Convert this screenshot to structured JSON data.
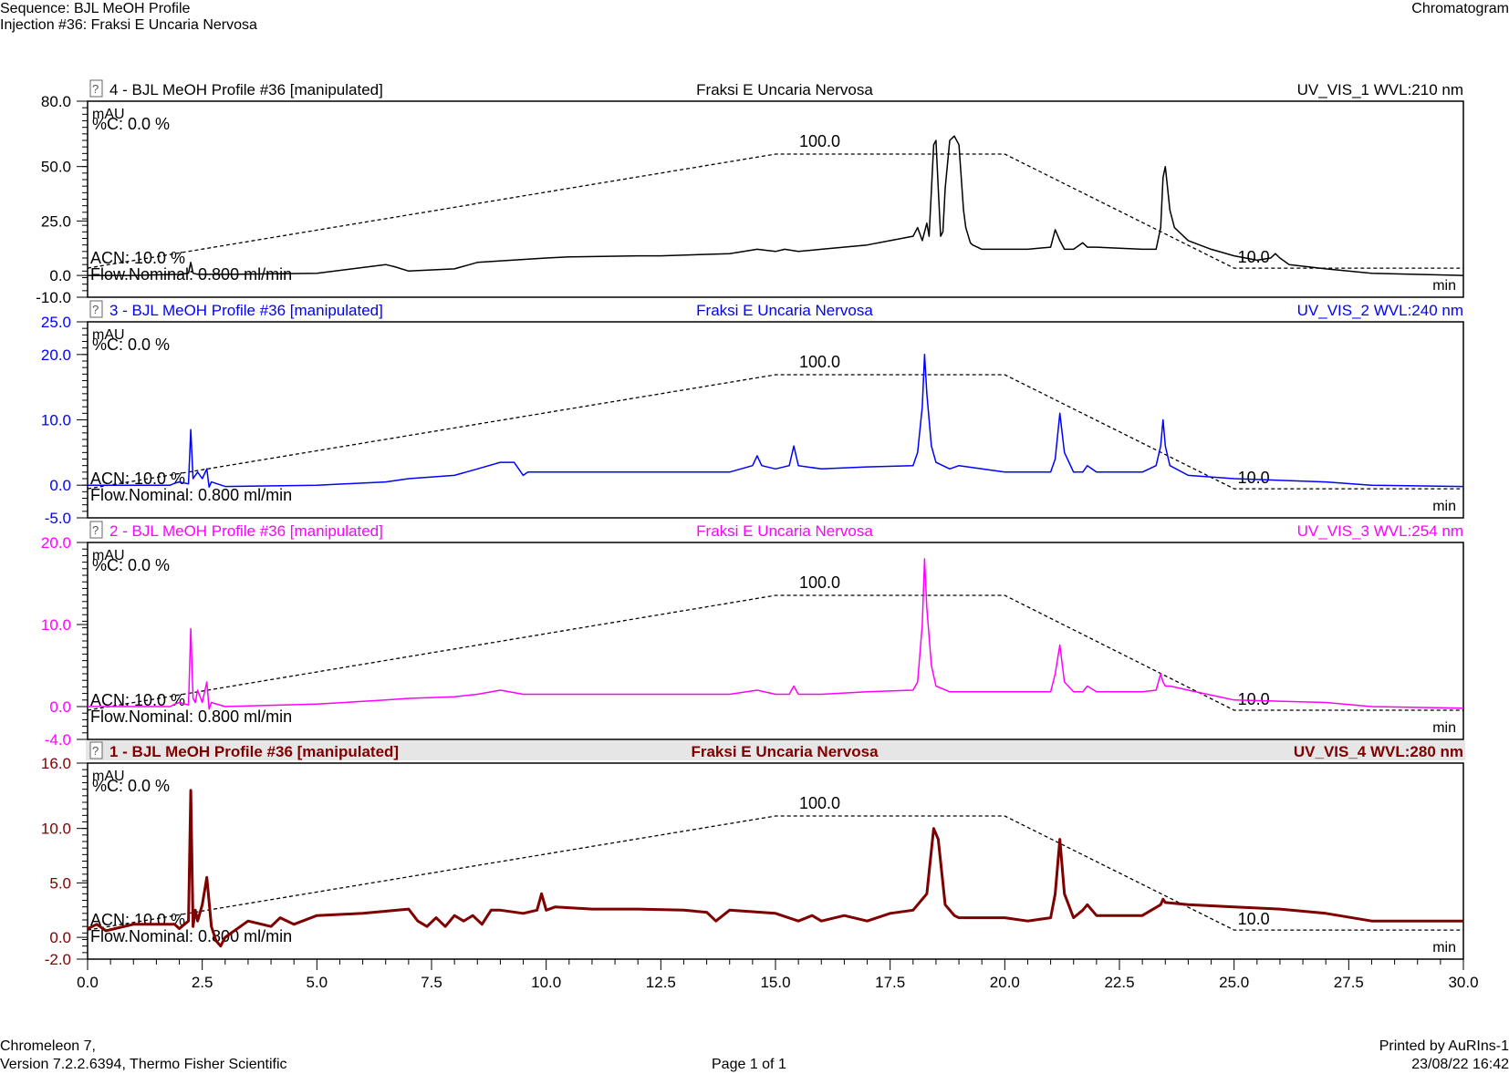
{
  "header": {
    "sequence": "Sequence: BJL MeOH Profile",
    "injection": "Injection #36: Fraksi E Uncaria Nervosa",
    "report_type": "Chromatogram"
  },
  "footer": {
    "software": "Chromeleon 7,",
    "version": "Version 7.2.2.6394, Thermo Fisher Scientific",
    "page": "Page 1 of 1",
    "printed_by": "Printed by AuRIns-1",
    "printed_at": "23/08/22 16:42"
  },
  "chart_data": {
    "type": "line",
    "x_ticks": [
      "0.0",
      "2.5",
      "5.0",
      "7.5",
      "10.0",
      "12.5",
      "15.0",
      "17.5",
      "20.0",
      "22.5",
      "25.0",
      "27.5",
      "30.0"
    ],
    "xlim": [
      0,
      30
    ],
    "grid": false,
    "gradient": {
      "x": [
        0,
        15,
        20,
        25,
        30
      ],
      "y_percent": [
        10,
        100,
        100,
        10,
        10
      ],
      "label_start": "ACN: 10.0 %",
      "label_peak": "100.0",
      "label_end": "10.0",
      "label_pct_c": "%C: 0.0 %",
      "label_flow": "Flow.Nominal: 0.800 ml/min"
    },
    "panels": [
      {
        "name": "4 - BJL MeOH Profile #36 [manipulated]",
        "sample": "Fraksi E Uncaria Nervosa",
        "channel": "UV_VIS_1 WVL:210 nm",
        "color": "#000000",
        "bold": false,
        "y_unit": "mAU",
        "x_unit": "min",
        "ylim": [
          -10,
          80
        ],
        "y_ticks": [
          "80.0",
          "50.0",
          "25.0",
          "0.0",
          "-10.0"
        ],
        "x": [
          0,
          1,
          2,
          2.2,
          2.25,
          2.3,
          2.4,
          3,
          5,
          6.5,
          6.7,
          7,
          8,
          8.5,
          10,
          10.5,
          12,
          12.5,
          14,
          14.6,
          15,
          15.2,
          15.5,
          16,
          17,
          17.5,
          18,
          18.1,
          18.2,
          18.3,
          18.35,
          18.45,
          18.5,
          18.55,
          18.6,
          18.65,
          18.7,
          18.8,
          18.9,
          19,
          19.1,
          19.15,
          19.25,
          19.3,
          19.4,
          19.5,
          19.6,
          19.7,
          20,
          20.5,
          21,
          21.1,
          21.2,
          21.3,
          21.5,
          21.7,
          21.8,
          22,
          23,
          23.3,
          23.4,
          23.45,
          23.5,
          23.6,
          23.7,
          24,
          24.5,
          25,
          25.5,
          25.8,
          25.9,
          26,
          26.2,
          27,
          28,
          30
        ],
        "y": [
          0,
          0,
          0.5,
          1,
          6,
          1,
          0.5,
          0.5,
          1,
          5,
          4,
          2,
          3,
          6,
          8,
          8.5,
          9,
          9,
          10,
          12,
          11,
          12,
          11,
          12,
          14,
          16,
          18,
          22,
          16,
          24,
          18,
          60,
          62,
          40,
          18,
          20,
          40,
          62,
          64,
          60,
          30,
          22,
          15,
          14,
          13,
          12,
          12,
          12,
          12,
          12,
          13,
          21,
          16,
          12,
          12,
          15,
          13,
          13,
          12,
          12,
          22,
          45,
          50,
          30,
          22,
          16,
          12,
          9,
          7,
          8,
          10,
          8,
          5,
          3,
          1,
          0
        ]
      },
      {
        "name": "3 - BJL MeOH Profile #36 [manipulated]",
        "sample": "Fraksi E Uncaria Nervosa",
        "channel": "UV_VIS_2 WVL:240 nm",
        "color": "#0000ff",
        "bold": false,
        "y_unit": "mAU",
        "x_unit": "min",
        "ylim": [
          -5,
          25
        ],
        "y_ticks": [
          "25.0",
          "20.0",
          "10.0",
          "0.0",
          "-5.0"
        ],
        "x": [
          0,
          1.8,
          1.9,
          2.0,
          2.2,
          2.25,
          2.3,
          2.4,
          2.5,
          2.6,
          2.65,
          2.7,
          3,
          5,
          6.5,
          7,
          8,
          8.5,
          9,
          9.3,
          9.5,
          9.6,
          10,
          11,
          12,
          14,
          14.5,
          14.6,
          14.7,
          15,
          15.3,
          15.4,
          15.5,
          16,
          17,
          18,
          18.1,
          18.2,
          18.25,
          18.3,
          18.4,
          18.5,
          18.8,
          19,
          20,
          21,
          21.1,
          21.2,
          21.3,
          21.5,
          21.7,
          21.8,
          22,
          23,
          23.3,
          23.4,
          23.45,
          23.5,
          23.6,
          24,
          25,
          27,
          28,
          30
        ],
        "y": [
          0,
          0,
          0.3,
          0.5,
          0.2,
          8.5,
          1,
          2,
          1,
          2.5,
          -0.3,
          0.5,
          -0.2,
          0,
          0.5,
          1,
          1.5,
          2.5,
          3.5,
          3.5,
          1.5,
          2,
          2,
          2,
          2,
          2,
          3,
          4.5,
          3,
          2.5,
          3,
          6,
          3,
          2.5,
          2.8,
          3,
          5,
          12,
          20,
          14,
          6,
          3.5,
          2.5,
          3,
          2,
          2,
          4,
          11,
          5,
          2,
          2,
          3,
          2,
          2,
          3,
          6,
          10,
          6,
          3,
          1.5,
          1,
          0.5,
          0,
          -0.2
        ]
      },
      {
        "name": "2 - BJL MeOH Profile #36 [manipulated]",
        "sample": "Fraksi E Uncaria Nervosa",
        "channel": "UV_VIS_3 WVL:254 nm",
        "color": "#ff00ff",
        "bold": false,
        "y_unit": "mAU",
        "x_unit": "min",
        "ylim": [
          -4,
          20
        ],
        "y_ticks": [
          "20.0",
          "10.0",
          "0.0",
          "-4.0"
        ],
        "x": [
          0,
          1.8,
          1.9,
          2.0,
          2.2,
          2.25,
          2.3,
          2.35,
          2.4,
          2.5,
          2.6,
          2.65,
          2.7,
          3,
          5,
          6.5,
          7,
          8,
          8.5,
          9,
          9.5,
          10,
          12,
          14,
          14.6,
          15,
          15.3,
          15.4,
          15.5,
          16,
          17,
          18,
          18.1,
          18.2,
          18.25,
          18.3,
          18.4,
          18.5,
          18.8,
          19,
          20,
          21,
          21.1,
          21.2,
          21.3,
          21.5,
          21.7,
          21.8,
          22,
          23,
          23.3,
          23.4,
          23.45,
          23.5,
          23.6,
          24,
          25,
          27,
          28,
          30
        ],
        "y": [
          0,
          0,
          0.3,
          0.5,
          0.2,
          9.5,
          1,
          0.5,
          2,
          0.5,
          3,
          -0.3,
          0.5,
          0,
          0.3,
          0.8,
          1,
          1.2,
          1.5,
          2,
          1.5,
          1.5,
          1.5,
          1.5,
          2,
          1.5,
          1.5,
          2.5,
          1.5,
          1.5,
          1.8,
          2,
          3,
          10,
          18,
          12,
          5,
          2.5,
          1.8,
          1.8,
          1.8,
          1.8,
          4,
          7.5,
          3,
          1.8,
          1.8,
          2.5,
          1.8,
          1.8,
          2,
          4,
          3,
          2.5,
          2.5,
          2,
          0.8,
          0.5,
          0,
          -0.2
        ]
      },
      {
        "name": "1 - BJL MeOH Profile #36 [manipulated]",
        "sample": "Fraksi E Uncaria Nervosa",
        "channel": "UV_VIS_4 WVL:280 nm",
        "color": "#7f0000",
        "bold": true,
        "y_unit": "mAU",
        "x_unit": "min",
        "ylim": [
          -2,
          16
        ],
        "y_ticks": [
          "16.0",
          "10.0",
          "5.0",
          "0.0",
          "-2.0"
        ],
        "x": [
          0,
          0.2,
          0.4,
          1,
          1.9,
          2.0,
          2.2,
          2.25,
          2.3,
          2.35,
          2.4,
          2.5,
          2.6,
          2.7,
          2.8,
          2.9,
          3.0,
          3.5,
          4,
          4.2,
          4.5,
          5,
          6,
          7,
          7.2,
          7.4,
          7.6,
          7.8,
          8,
          8.2,
          8.4,
          8.6,
          8.8,
          9,
          9.5,
          9.8,
          9.9,
          10.0,
          10.2,
          11,
          12,
          13,
          13.5,
          13.7,
          14,
          15,
          15.5,
          15.8,
          16,
          16.5,
          17,
          17.5,
          18,
          18.3,
          18.45,
          18.55,
          18.7,
          18.9,
          19,
          20,
          20.5,
          21,
          21.1,
          21.2,
          21.3,
          21.5,
          21.7,
          21.8,
          22,
          23,
          23.4,
          23.45,
          23.5,
          24,
          25,
          26,
          27,
          28,
          29,
          30
        ],
        "y": [
          0.8,
          1.2,
          0.6,
          1.2,
          1.2,
          0.8,
          1.5,
          13.5,
          1,
          2.5,
          1.5,
          3,
          5.5,
          1,
          -0.3,
          -0.8,
          0,
          1.5,
          1,
          1.8,
          1.2,
          2,
          2.2,
          2.6,
          1.5,
          1,
          1.8,
          1,
          2,
          1.5,
          2,
          1.2,
          2.5,
          2.5,
          2.2,
          2.5,
          4,
          2.5,
          2.8,
          2.6,
          2.6,
          2.5,
          2.3,
          1.5,
          2.5,
          2.2,
          1.5,
          2,
          1.5,
          2,
          1.5,
          2.2,
          2.5,
          4,
          10,
          9,
          3,
          2,
          1.8,
          1.8,
          1.5,
          1.8,
          4,
          9,
          4,
          1.8,
          2.5,
          3,
          2,
          2,
          3,
          3.5,
          3.2,
          3,
          2.8,
          2.6,
          2.2,
          1.5,
          1.5,
          1.5
        ]
      }
    ]
  }
}
